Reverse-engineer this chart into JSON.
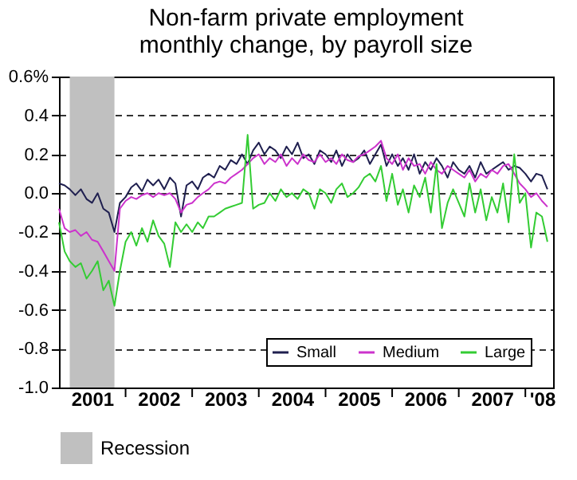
{
  "chart_data": {
    "type": "line",
    "title": [
      "Non-farm private employment",
      "monthly change, by payroll size"
    ],
    "x": [
      "2001-01",
      "2001-02",
      "2001-03",
      "2001-04",
      "2001-05",
      "2001-06",
      "2001-07",
      "2001-08",
      "2001-09",
      "2001-10",
      "2001-11",
      "2001-12",
      "2002-01",
      "2002-02",
      "2002-03",
      "2002-04",
      "2002-05",
      "2002-06",
      "2002-07",
      "2002-08",
      "2002-09",
      "2002-10",
      "2002-11",
      "2002-12",
      "2003-01",
      "2003-02",
      "2003-03",
      "2003-04",
      "2003-05",
      "2003-06",
      "2003-07",
      "2003-08",
      "2003-09",
      "2003-10",
      "2003-11",
      "2003-12",
      "2004-01",
      "2004-02",
      "2004-03",
      "2004-04",
      "2004-05",
      "2004-06",
      "2004-07",
      "2004-08",
      "2004-09",
      "2004-10",
      "2004-11",
      "2004-12",
      "2005-01",
      "2005-02",
      "2005-03",
      "2005-04",
      "2005-05",
      "2005-06",
      "2005-07",
      "2005-08",
      "2005-09",
      "2005-10",
      "2005-11",
      "2005-12",
      "2006-01",
      "2006-02",
      "2006-03",
      "2006-04",
      "2006-05",
      "2006-06",
      "2006-07",
      "2006-08",
      "2006-09",
      "2006-10",
      "2006-11",
      "2006-12",
      "2007-01",
      "2007-02",
      "2007-03",
      "2007-04",
      "2007-05",
      "2007-06",
      "2007-07",
      "2007-08",
      "2007-09",
      "2007-10",
      "2007-11",
      "2007-12",
      "2008-01",
      "2008-02",
      "2008-03",
      "2008-04",
      "2008-05"
    ],
    "series": [
      {
        "name": "Small",
        "color": "#1f1f4f",
        "values": [
          0.05,
          0.04,
          0.02,
          -0.01,
          0.02,
          -0.03,
          -0.05,
          0.0,
          -0.08,
          -0.1,
          -0.2,
          -0.05,
          -0.02,
          0.03,
          0.05,
          0.01,
          0.07,
          0.04,
          0.07,
          0.02,
          0.08,
          0.05,
          -0.12,
          0.04,
          0.06,
          0.02,
          0.08,
          0.1,
          0.08,
          0.14,
          0.12,
          0.17,
          0.15,
          0.2,
          0.15,
          0.22,
          0.26,
          0.2,
          0.24,
          0.22,
          0.18,
          0.24,
          0.2,
          0.26,
          0.18,
          0.2,
          0.15,
          0.22,
          0.2,
          0.16,
          0.22,
          0.14,
          0.2,
          0.16,
          0.18,
          0.22,
          0.15,
          0.2,
          0.25,
          0.14,
          0.2,
          0.14,
          0.18,
          0.12,
          0.2,
          0.1,
          0.16,
          0.12,
          0.18,
          0.14,
          0.08,
          0.16,
          0.12,
          0.1,
          0.14,
          0.08,
          0.16,
          0.1,
          0.12,
          0.14,
          0.16,
          0.12,
          0.14,
          0.13,
          0.1,
          0.06,
          0.1,
          0.09,
          0.02
        ]
      },
      {
        "name": "Medium",
        "color": "#cc33cc",
        "values": [
          -0.08,
          -0.18,
          -0.2,
          -0.19,
          -0.22,
          -0.2,
          -0.24,
          -0.25,
          -0.3,
          -0.35,
          -0.4,
          -0.08,
          -0.04,
          -0.02,
          -0.03,
          -0.01,
          0.0,
          -0.02,
          0.0,
          -0.01,
          0.0,
          -0.03,
          -0.1,
          -0.06,
          -0.05,
          -0.02,
          0.0,
          0.02,
          0.05,
          0.06,
          0.05,
          0.08,
          0.1,
          0.12,
          0.15,
          0.18,
          0.2,
          0.15,
          0.18,
          0.16,
          0.2,
          0.14,
          0.18,
          0.15,
          0.2,
          0.17,
          0.16,
          0.2,
          0.16,
          0.18,
          0.15,
          0.2,
          0.17,
          0.16,
          0.19,
          0.2,
          0.22,
          0.24,
          0.27,
          0.18,
          0.15,
          0.2,
          0.12,
          0.18,
          0.14,
          0.15,
          0.1,
          0.16,
          0.12,
          0.1,
          0.14,
          0.12,
          0.1,
          0.08,
          0.12,
          0.06,
          0.1,
          0.08,
          0.12,
          0.1,
          0.14,
          0.15,
          0.1,
          0.05,
          0.02,
          -0.02,
          0.0,
          -0.04,
          -0.07
        ]
      },
      {
        "name": "Large",
        "color": "#33cc33",
        "values": [
          -0.15,
          -0.3,
          -0.35,
          -0.38,
          -0.36,
          -0.44,
          -0.4,
          -0.35,
          -0.5,
          -0.45,
          -0.58,
          -0.4,
          -0.25,
          -0.2,
          -0.27,
          -0.18,
          -0.25,
          -0.14,
          -0.22,
          -0.26,
          -0.38,
          -0.15,
          -0.2,
          -0.16,
          -0.2,
          -0.15,
          -0.18,
          -0.12,
          -0.12,
          -0.1,
          -0.08,
          -0.07,
          -0.06,
          -0.05,
          0.3,
          -0.08,
          -0.06,
          -0.05,
          0.0,
          -0.04,
          0.02,
          -0.02,
          0.0,
          -0.03,
          0.02,
          0.0,
          -0.08,
          0.02,
          0.0,
          -0.05,
          0.02,
          0.05,
          -0.02,
          0.0,
          0.03,
          0.08,
          0.1,
          0.06,
          0.14,
          -0.04,
          0.1,
          -0.06,
          0.02,
          -0.1,
          0.04,
          -0.02,
          0.08,
          -0.1,
          0.15,
          -0.18,
          -0.05,
          0.02,
          -0.05,
          -0.12,
          0.05,
          -0.1,
          0.02,
          -0.14,
          -0.02,
          -0.1,
          0.05,
          -0.15,
          0.2,
          -0.05,
          0.0,
          -0.28,
          -0.1,
          -0.12,
          -0.25
        ]
      }
    ],
    "xlim": [
      "2001-01",
      "2008-06"
    ],
    "xticks": [
      {
        "value": "2001-07",
        "label": "2001"
      },
      {
        "value": "2002-07",
        "label": "2002"
      },
      {
        "value": "2003-07",
        "label": "2003"
      },
      {
        "value": "2004-07",
        "label": "2004"
      },
      {
        "value": "2005-07",
        "label": "2005"
      },
      {
        "value": "2006-07",
        "label": "2006"
      },
      {
        "value": "2007-07",
        "label": "2007"
      },
      {
        "value": "2008-04",
        "label": "'08"
      },
      {
        "value": "2002-01",
        "label": null
      },
      {
        "value": "2003-01",
        "label": null
      },
      {
        "value": "2004-01",
        "label": null
      },
      {
        "value": "2005-01",
        "label": null
      },
      {
        "value": "2006-01",
        "label": null
      },
      {
        "value": "2007-01",
        "label": null
      },
      {
        "value": "2008-01",
        "label": null
      }
    ],
    "ylim": [
      -1.0,
      0.6
    ],
    "yticks": [
      {
        "value": 0.6,
        "label": "0.6%"
      },
      {
        "value": 0.4,
        "label": "0.4"
      },
      {
        "value": 0.2,
        "label": "0.2"
      },
      {
        "value": 0,
        "label": "0.0"
      },
      {
        "value": -0.2,
        "label": "-0.2"
      },
      {
        "value": -0.4,
        "label": "-0.4"
      },
      {
        "value": -0.6,
        "label": "-0.6"
      },
      {
        "value": -0.8,
        "label": "-0.8"
      },
      {
        "value": -1.0,
        "label": "-1.0"
      }
    ],
    "bands": [
      {
        "axis": "x",
        "from": "2001-03",
        "to": "2001-11",
        "label": "Recession",
        "color": "#c0c0c0"
      }
    ],
    "grid": "y",
    "line_style": "solid",
    "legend": "bottom right"
  }
}
